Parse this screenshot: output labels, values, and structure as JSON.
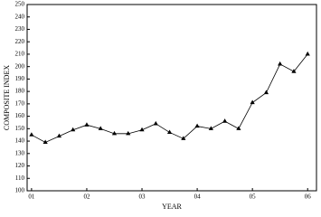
{
  "chart_data": {
    "type": "line",
    "xlabel": "YEAR",
    "ylabel": "COMPOSITE INDEX",
    "x": [
      1,
      1.25,
      1.5,
      1.75,
      2,
      2.25,
      2.5,
      2.75,
      3,
      3.25,
      3.5,
      3.75,
      4,
      4.25,
      4.5,
      4.75,
      5,
      5.25,
      5.5,
      5.75,
      6
    ],
    "series": [
      {
        "color": "#000000",
        "marker": "triangle",
        "values": [
          145,
          139,
          144,
          149,
          153,
          150,
          146,
          146,
          149,
          154,
          147,
          142,
          152,
          150,
          156,
          150,
          171,
          179,
          202,
          196,
          210
        ]
      }
    ],
    "xlim": [
      0.92,
      6.16
    ],
    "xticks": [
      {
        "value": 1,
        "label": "01"
      },
      {
        "value": 2,
        "label": "02"
      },
      {
        "value": 3,
        "label": "03"
      },
      {
        "value": 4,
        "label": "04"
      },
      {
        "value": 5,
        "label": "05"
      },
      {
        "value": 6,
        "label": "06"
      }
    ],
    "ylim": [
      100,
      250
    ],
    "yticks": [
      100,
      110,
      120,
      130,
      140,
      150,
      160,
      170,
      180,
      190,
      200,
      210,
      220,
      230,
      240,
      250
    ],
    "grid": false
  }
}
